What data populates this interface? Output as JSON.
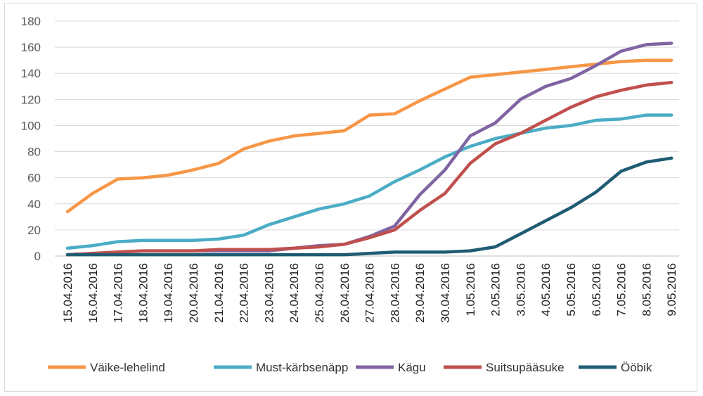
{
  "chart_data": {
    "type": "line",
    "title": "",
    "xlabel": "",
    "ylabel": "",
    "ylim": [
      0,
      180
    ],
    "yticks": [
      0,
      20,
      40,
      60,
      80,
      100,
      120,
      140,
      160,
      180
    ],
    "grid": "horizontal",
    "legend_position": "bottom",
    "categories": [
      "15.04.2016",
      "16.04.2016",
      "17.04.2016",
      "18.04.2016",
      "19.04.2016",
      "20.04.2016",
      "21.04.2016",
      "22.04.2016",
      "23.04.2016",
      "24.04.2016",
      "25.04.2016",
      "26.04.2016",
      "27.04.2016",
      "28.04.2016",
      "29.04.2016",
      "30.04.2016",
      "1.05.2016",
      "2.05.2016",
      "3.05.2016",
      "4.05.2016",
      "5.05.2016",
      "6.05.2016",
      "7.05.2016",
      "8.05.2016",
      "9.05.2016"
    ],
    "series": [
      {
        "name": "Väike-lehelind",
        "color": "#F79646",
        "values": [
          34,
          48,
          59,
          60,
          62,
          66,
          71,
          82,
          88,
          92,
          94,
          96,
          108,
          109,
          119,
          128,
          137,
          139,
          141,
          143,
          145,
          147,
          149,
          150,
          150
        ]
      },
      {
        "name": "Must-kärbsenäpp",
        "color": "#4BACC6",
        "values": [
          6,
          8,
          11,
          12,
          12,
          12,
          13,
          16,
          24,
          30,
          36,
          40,
          46,
          57,
          66,
          76,
          84,
          90,
          94,
          98,
          100,
          104,
          105,
          108,
          108
        ]
      },
      {
        "name": "Kägu",
        "color": "#8064A2",
        "values": [
          1,
          2,
          3,
          4,
          4,
          4,
          4,
          4,
          4,
          6,
          8,
          9,
          15,
          23,
          47,
          66,
          92,
          102,
          120,
          130,
          136,
          146,
          157,
          162,
          163
        ]
      },
      {
        "name": "Suitsupääsuke",
        "color": "#C0504D",
        "values": [
          1,
          2,
          3,
          4,
          4,
          4,
          5,
          5,
          5,
          6,
          7,
          9,
          14,
          20,
          35,
          48,
          71,
          86,
          94,
          104,
          114,
          122,
          127,
          131,
          133
        ]
      },
      {
        "name": "Ööbik",
        "color": "#1F5C73",
        "values": [
          1,
          1,
          1,
          1,
          1,
          1,
          1,
          1,
          1,
          1,
          1,
          1,
          2,
          3,
          3,
          3,
          4,
          7,
          17,
          27,
          37,
          49,
          65,
          72,
          75
        ]
      }
    ]
  }
}
